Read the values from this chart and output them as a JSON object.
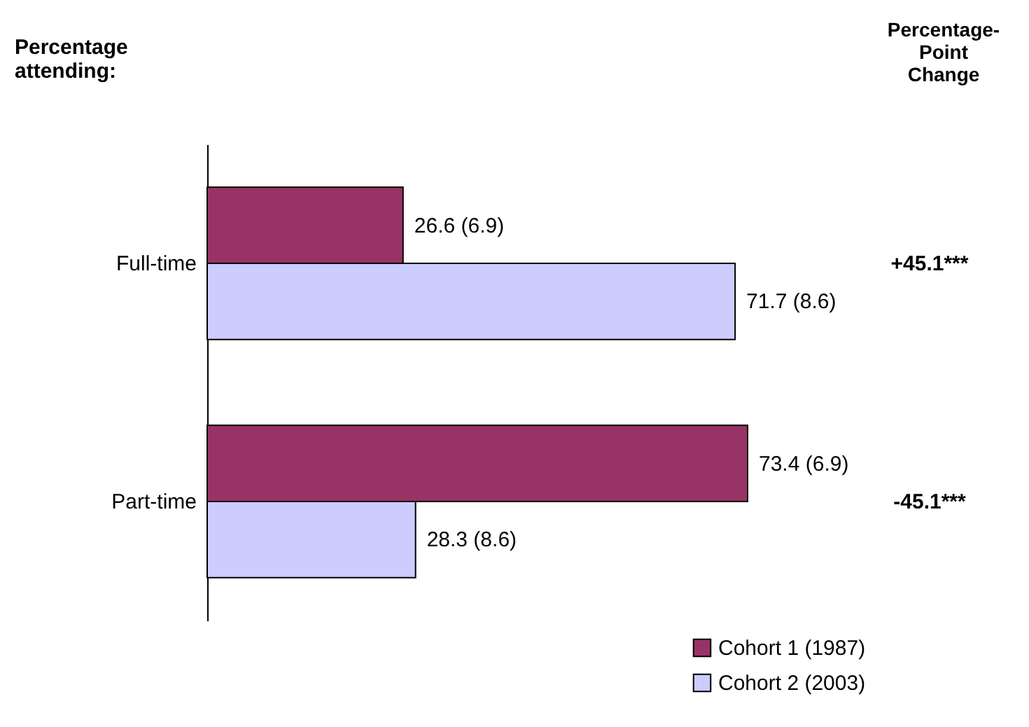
{
  "chart_data": {
    "type": "bar",
    "orientation": "horizontal",
    "ylabel": "Percentage attending:",
    "categories": [
      "Full-time",
      "Part-time"
    ],
    "series": [
      {
        "name": "Cohort 1 (1987)",
        "color": "#993366",
        "values": [
          26.6,
          73.4
        ],
        "value_labels": [
          "26.6 (6.9)",
          "73.4 (6.9)"
        ]
      },
      {
        "name": "Cohort 2 (2003)",
        "color": "#ccccff",
        "values": [
          71.7,
          28.3
        ],
        "value_labels": [
          "71.7 (8.6)",
          "28.3 (8.6)"
        ]
      }
    ],
    "annotations": [
      "Percentage-Point Change",
      "+45.1***",
      "-45.1***"
    ],
    "legend": "bottom right"
  }
}
